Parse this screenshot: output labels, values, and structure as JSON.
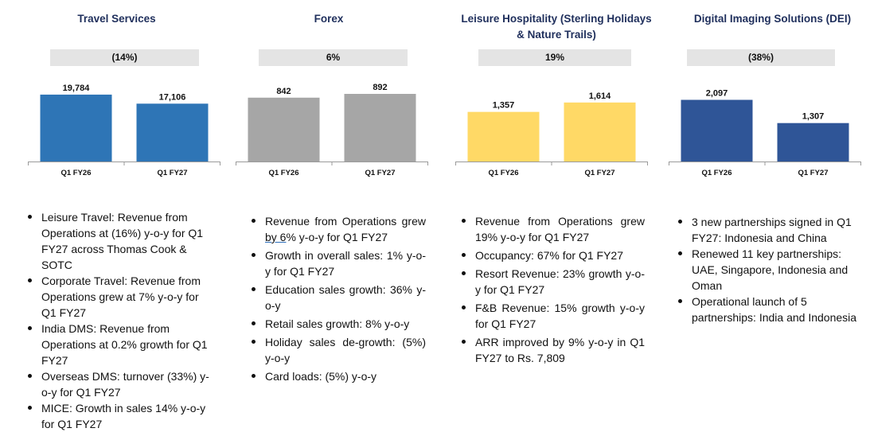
{
  "chart_data": [
    {
      "type": "bar",
      "title": "Travel Services",
      "change": "(14%)",
      "categories": [
        "Q1 FY26",
        "Q1 FY27"
      ],
      "values": [
        19784,
        17106
      ],
      "value_labels": [
        "19,784",
        "17,106"
      ],
      "color": "#2e75b6",
      "ylim": [
        0,
        20000
      ]
    },
    {
      "type": "bar",
      "title": "Forex",
      "change": "6%",
      "categories": [
        "Q1 FY26",
        "Q1 FY27"
      ],
      "values": [
        842,
        892
      ],
      "value_labels": [
        "842",
        "892"
      ],
      "color": "#a6a6a6",
      "ylim": [
        0,
        892
      ]
    },
    {
      "type": "bar",
      "title": "Leisure Hospitality (Sterling Holidays & Nature Trails)",
      "change": "19%",
      "categories": [
        "Q1 FY26",
        "Q1 FY27"
      ],
      "values": [
        1357,
        1614
      ],
      "value_labels": [
        "1,357",
        "1,614"
      ],
      "color": "#ffd966",
      "ylim": [
        0,
        1850
      ]
    },
    {
      "type": "bar",
      "title": "Digital Imaging Solutions (DEI)",
      "change": "(38%)",
      "categories": [
        "Q1 FY26",
        "Q1 FY27"
      ],
      "values": [
        2097,
        1307
      ],
      "value_labels": [
        "2,097",
        "1,307"
      ],
      "color": "#2f5597",
      "ylim": [
        0,
        2300
      ]
    }
  ],
  "panels": [
    {
      "title_line1": "Travel Services",
      "title_line2": "",
      "bullets": [
        "Leisure Travel: Revenue from Operations at (16%) y-o-y for Q1 FY27 across Thomas Cook & SOTC",
        "Corporate Travel: Revenue from Operations grew at 7% y-o-y for Q1 FY27",
        "India DMS: Revenue from Operations at 0.2% growth for Q1 FY27",
        "Overseas DMS: turnover (33%) y-o-y for Q1 FY27",
        "MICE: Growth in sales 14% y-o-y for Q1 FY27"
      ]
    },
    {
      "title_line1": "Forex",
      "title_line2": "",
      "bullet1_prefix": "Revenue from Operations grew ",
      "bullet1_underlined": "by  6",
      "bullet1_suffix": "% y-o-y for Q1 FY27",
      "bullets": [
        "Growth in overall sales: 1% y-o-y for Q1 FY27",
        "Education sales growth: 36% y-o-y",
        "Retail sales growth: 8% y-o-y",
        "Holiday sales de-growth: (5%) y-o-y",
        "Card loads: (5%) y-o-y"
      ]
    },
    {
      "title_line1": "Leisure Hospitality (Sterling Holidays",
      "title_line2": "& Nature Trails)",
      "bullets": [
        "Revenue from Operations grew 19% y-o-y for Q1 FY27",
        "Occupancy: 67% for Q1 FY27",
        "Resort Revenue: 23% growth y-o-y for Q1 FY27",
        "F&B Revenue: 15% growth y-o-y for Q1 FY27",
        "ARR improved by 9% y-o-y in Q1 FY27 to Rs. 7,809"
      ]
    },
    {
      "title_line1": "Digital Imaging Solutions (DEI)",
      "title_line2": "",
      "bullets": [
        "3 new partnerships signed in Q1 FY27: Indonesia and China",
        "Renewed 11 key partnerships: UAE, Singapore, Indonesia and Oman",
        "Operational launch of 5 partnerships: India and Indonesia"
      ]
    }
  ]
}
